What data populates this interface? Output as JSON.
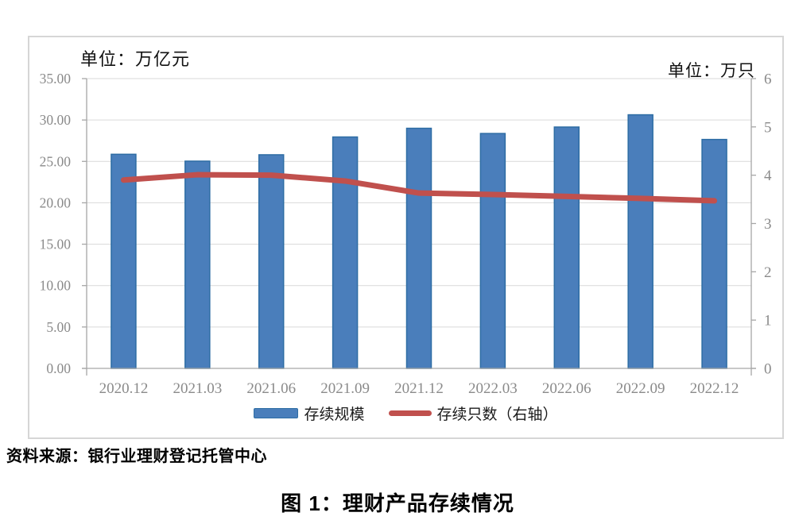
{
  "figure": {
    "unit_left": "单位：万亿元",
    "unit_right": "单位：万只",
    "legend": [
      {
        "label": "存续规模",
        "type": "bar",
        "color": "#4a7ebb"
      },
      {
        "label": "存续只数（右轴）",
        "type": "line",
        "color": "#c0504d"
      }
    ]
  },
  "source_note": "资料来源：银行业理财登记托管中心",
  "caption": "图 1：理财产品存续情况",
  "chart_data": {
    "type": "combo-bar-line",
    "categories": [
      "2020.12",
      "2021.03",
      "2021.06",
      "2021.09",
      "2021.12",
      "2022.03",
      "2022.06",
      "2022.09",
      "2022.12"
    ],
    "series": [
      {
        "name": "存续规模",
        "type": "bar",
        "yaxis": "left",
        "color": "#4a7ebb",
        "border_color": "#2e6da4",
        "values": [
          25.86,
          25.03,
          25.8,
          27.95,
          29.0,
          28.37,
          29.15,
          30.63,
          27.65
        ]
      },
      {
        "name": "存续只数（右轴）",
        "type": "line",
        "yaxis": "right",
        "color": "#c0504d",
        "values": [
          3.9,
          4.01,
          4.0,
          3.88,
          3.63,
          3.6,
          3.56,
          3.52,
          3.47
        ]
      }
    ],
    "left_axis": {
      "label": "单位：万亿元",
      "min": 0,
      "max": 35,
      "tick_step": 5,
      "tick_labels": [
        "0.00",
        "5.00",
        "10.00",
        "15.00",
        "20.00",
        "25.00",
        "30.00",
        "35.00"
      ]
    },
    "right_axis": {
      "label": "单位：万只",
      "min": 0,
      "max": 6,
      "tick_step": 1,
      "tick_labels": [
        "0",
        "1",
        "2",
        "3",
        "4",
        "5",
        "6"
      ]
    },
    "grid": "horizontal",
    "gridline_color": "#d9d9d9",
    "axis_color": "#a6a6a6",
    "legend_position": "bottom"
  }
}
